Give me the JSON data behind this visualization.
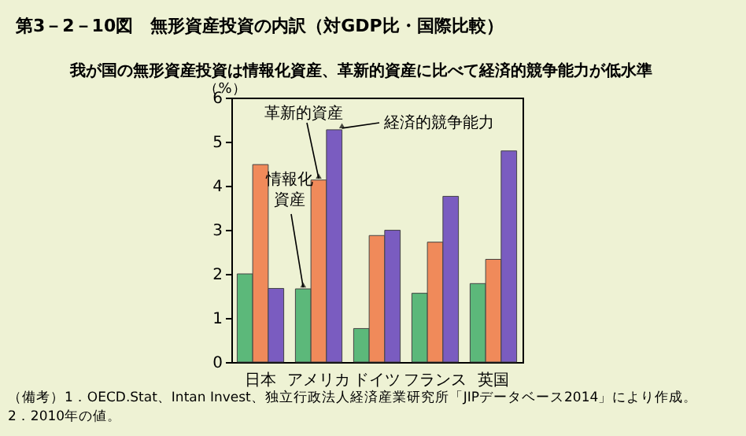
{
  "chart_data": {
    "type": "bar",
    "title": "第3－2－10図　無形資産投資の内訳（対GDP比・国際比較）",
    "subtitle": "我が国の無形資産投資は情報化資産、革新的資産に比べて経済的競争能力が低水準",
    "ylabel": "（%）",
    "categories": [
      "日本",
      "アメリカ",
      "ドイツ",
      "フランス",
      "英国"
    ],
    "series": [
      {
        "name": "情報化資産",
        "color": "#5cb87a",
        "values": [
          2.0,
          1.66,
          0.76,
          1.56,
          1.78
        ]
      },
      {
        "name": "革新的資産",
        "color": "#f08a5a",
        "values": [
          4.48,
          4.13,
          2.87,
          2.72,
          2.33
        ]
      },
      {
        "name": "経済的競争能力",
        "color": "#7a5cc0",
        "values": [
          1.67,
          5.27,
          2.99,
          3.76,
          4.79
        ]
      }
    ],
    "ylim": [
      0,
      6
    ],
    "yticks": [
      0,
      1,
      2,
      3,
      4,
      5,
      6
    ],
    "grid": false,
    "legend": false,
    "annotations": [
      "（備考）1．OECD.Stat、Intan Invest、独立行政法人経済産業研究所「JIPデータベース2014」により作成。",
      "　　　　2．2010年の値。"
    ]
  }
}
